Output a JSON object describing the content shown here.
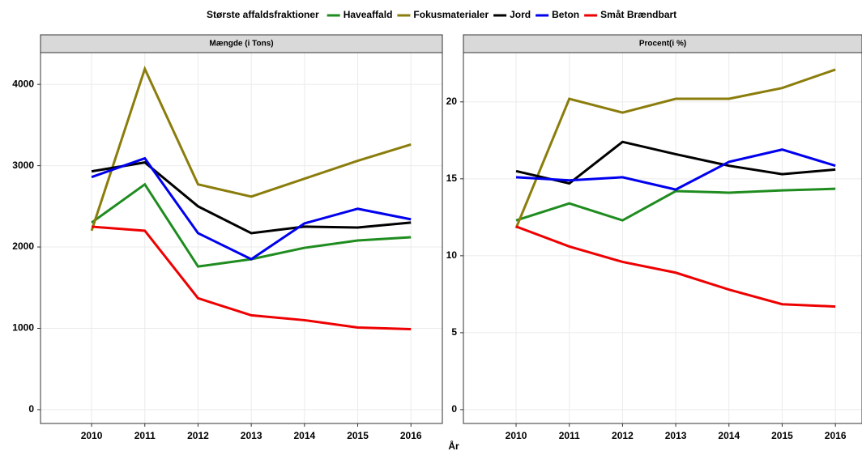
{
  "legend_title": "Største affaldsfraktioner",
  "x_label": "År",
  "chart_data": [
    {
      "type": "line",
      "title": "Mængde (i Tons)",
      "x": [
        2010,
        2011,
        2012,
        2013,
        2014,
        2015,
        2016
      ],
      "xlim": [
        2009.04,
        2016.59
      ],
      "xticks": [
        2010,
        2011,
        2012,
        2013,
        2014,
        2015,
        2016
      ],
      "ylim": [
        -170,
        4390
      ],
      "yticks": [
        0,
        1000,
        2000,
        3000,
        4000
      ],
      "grid": true,
      "series": [
        {
          "name": "Haveaffald",
          "color": "#1f8c1f",
          "values": [
            2300,
            2770,
            1760,
            1850,
            1990,
            2080,
            2120
          ]
        },
        {
          "name": "Fokusmaterialer",
          "color": "#8b7d0c",
          "values": [
            2200,
            4190,
            2770,
            2620,
            2840,
            3060,
            3260
          ]
        },
        {
          "name": "Jord",
          "color": "#000000",
          "values": [
            2930,
            3040,
            2500,
            2170,
            2250,
            2240,
            2300
          ]
        },
        {
          "name": "Beton",
          "color": "#0000ee",
          "values": [
            2860,
            3090,
            2170,
            1850,
            2290,
            2470,
            2340
          ]
        },
        {
          "name": "Småt Brændbart",
          "color": "#ee0000",
          "values": [
            2250,
            2200,
            1370,
            1160,
            1100,
            1010,
            990
          ]
        }
      ]
    },
    {
      "type": "line",
      "title": "Procent(i %)",
      "x": [
        2010,
        2011,
        2012,
        2013,
        2014,
        2015,
        2016
      ],
      "xlim": [
        2009.01,
        2016.5
      ],
      "xticks": [
        2010,
        2011,
        2012,
        2013,
        2014,
        2015,
        2016
      ],
      "ylim": [
        -0.9,
        23.2
      ],
      "yticks": [
        0,
        5,
        10,
        15,
        20
      ],
      "grid": true,
      "series": [
        {
          "name": "Haveaffald",
          "color": "#1f8c1f",
          "values": [
            12.3,
            13.4,
            12.3,
            14.2,
            14.1,
            14.25,
            14.35
          ]
        },
        {
          "name": "Fokusmaterialer",
          "color": "#8b7d0c",
          "values": [
            11.8,
            20.2,
            19.3,
            20.2,
            20.2,
            20.9,
            22.1
          ]
        },
        {
          "name": "Jord",
          "color": "#000000",
          "values": [
            15.5,
            14.7,
            17.4,
            16.6,
            15.85,
            15.3,
            15.6
          ]
        },
        {
          "name": "Beton",
          "color": "#0000ee",
          "values": [
            15.1,
            14.9,
            15.1,
            14.3,
            16.1,
            16.9,
            15.85
          ]
        },
        {
          "name": "Småt Brændbart",
          "color": "#ee0000",
          "values": [
            11.9,
            10.6,
            9.6,
            8.9,
            7.8,
            6.85,
            6.7
          ]
        }
      ]
    }
  ]
}
